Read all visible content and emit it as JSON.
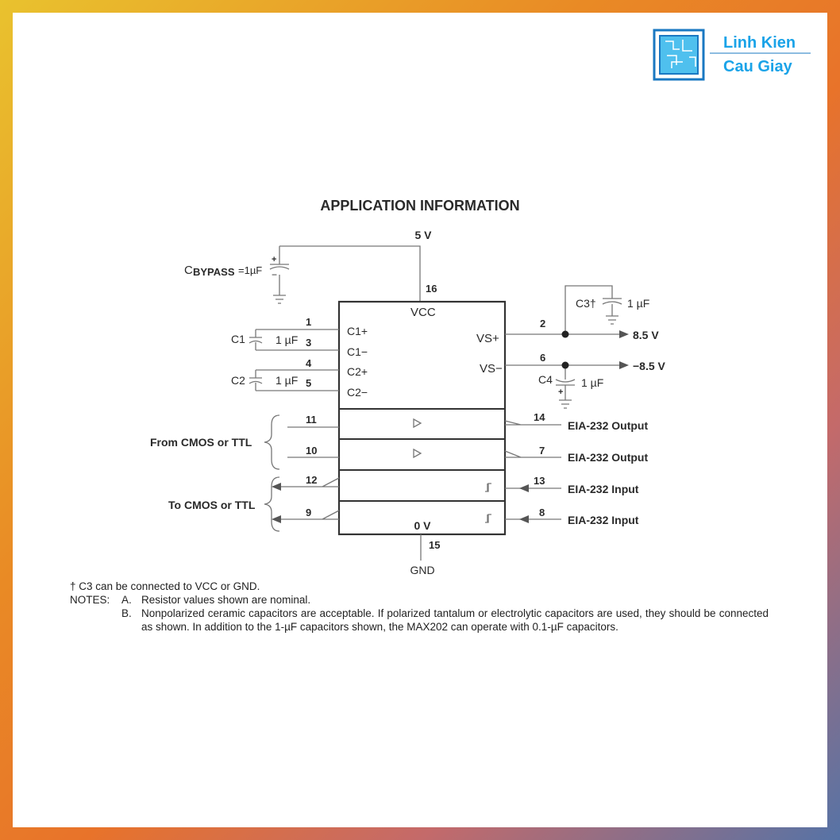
{
  "logo": {
    "line1": "Linh Kien",
    "line2": "Cau Giay",
    "color": "#1aa3e8"
  },
  "title": "APPLICATION INFORMATION",
  "supply": {
    "vcc_label": "5 V",
    "gnd_label": "GND",
    "vcc_pin": "16",
    "gnd_pin": "15",
    "chip_vcc": "VCC",
    "chip_gnd": "0 V"
  },
  "bypass": {
    "label_c": "C",
    "label_sub": "BYPASS",
    "label_val": "=1µF"
  },
  "caps": {
    "c1": {
      "name": "C1",
      "value": "1 µF",
      "pin_a": "1",
      "pin_b": "3",
      "lbl_a": "C1+",
      "lbl_b": "C1−"
    },
    "c2": {
      "name": "C2",
      "value": "1 µF",
      "pin_a": "4",
      "pin_b": "5",
      "lbl_a": "C2+",
      "lbl_b": "C2−"
    },
    "c3": {
      "name": "C3†",
      "value": "1 µF"
    },
    "c4": {
      "name": "C4",
      "value": "1 µF"
    }
  },
  "rails": {
    "vsp": {
      "label": "VS+",
      "pin": "2",
      "out": "8.5 V"
    },
    "vsn": {
      "label": "VS−",
      "pin": "6",
      "out": "−8.5 V"
    }
  },
  "drivers": {
    "group": "From CMOS or TTL",
    "items": [
      {
        "in": "11",
        "out": "14",
        "label": "EIA-232 Output"
      },
      {
        "in": "10",
        "out": "7",
        "label": "EIA-232 Output"
      }
    ]
  },
  "receivers": {
    "group": "To CMOS or TTL",
    "items": [
      {
        "out": "12",
        "in": "13",
        "label": "EIA-232 Input"
      },
      {
        "out": "9",
        "in": "8",
        "label": "EIA-232 Input"
      }
    ]
  },
  "notes": {
    "dagger": "† C3 can be connected to VCC or GND.",
    "header": "NOTES:",
    "a_key": "A.",
    "a": "Resistor values shown are nominal.",
    "b_key": "B.",
    "b": "Nonpolarized ceramic capacitors are acceptable. If polarized tantalum or electrolytic capacitors are used, they should be connected as shown. In addition to the 1-µF capacitors shown, the MAX202 can operate with 0.1-µF capacitors."
  }
}
